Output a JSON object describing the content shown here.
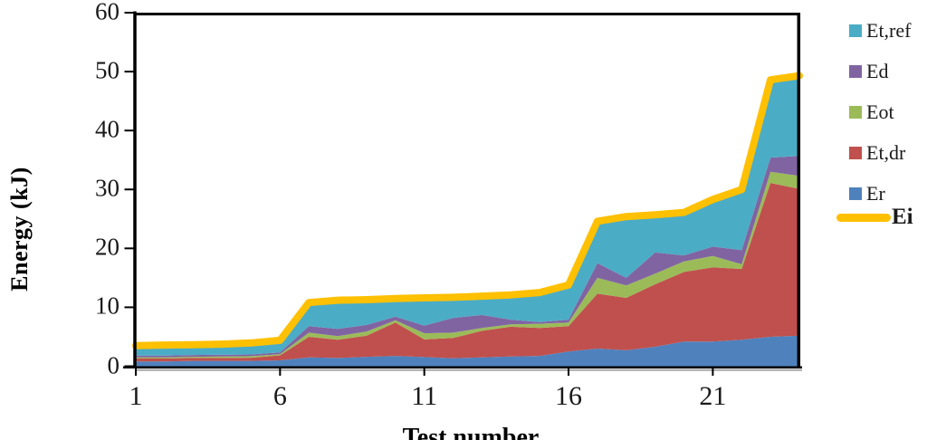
{
  "chart_data": {
    "type": "area",
    "stacked": true,
    "title": "",
    "xlabel": "Test number",
    "ylabel": "Energy (kJ)",
    "xlim": [
      1,
      24
    ],
    "ylim": [
      0,
      60
    ],
    "x_ticks": [
      1,
      6,
      11,
      16,
      21
    ],
    "y_ticks": [
      0,
      10,
      20,
      30,
      40,
      50,
      60
    ],
    "grid": false,
    "legend_position": "right",
    "x": [
      1,
      2,
      3,
      4,
      5,
      6,
      7,
      8,
      9,
      10,
      11,
      12,
      13,
      14,
      15,
      16,
      17,
      18,
      19,
      20,
      21,
      22,
      23,
      24
    ],
    "series": [
      {
        "name": "Er",
        "color": "#4F81BD",
        "values": [
          0.8,
          0.8,
          0.9,
          0.9,
          0.9,
          1.0,
          1.5,
          1.4,
          1.6,
          1.75,
          1.55,
          1.35,
          1.5,
          1.65,
          1.75,
          2.5,
          3.0,
          2.7,
          3.3,
          4.2,
          4.2,
          4.5,
          5.0,
          5.2
        ]
      },
      {
        "name": "Et,dr",
        "color": "#C0504D",
        "values": [
          0.5,
          0.5,
          0.5,
          0.5,
          0.55,
          0.85,
          3.5,
          3.1,
          3.6,
          5.65,
          3.0,
          3.45,
          4.5,
          5.05,
          4.75,
          4.3,
          9.3,
          8.9,
          10.6,
          11.8,
          12.6,
          12.0,
          26.1,
          24.9
        ]
      },
      {
        "name": "Eot",
        "color": "#9BBB59",
        "values": [
          0.2,
          0.2,
          0.2,
          0.25,
          0.25,
          0.2,
          0.7,
          0.6,
          0.7,
          0.4,
          1.05,
          0.9,
          0.5,
          0.4,
          0.7,
          0.6,
          2.7,
          2.1,
          1.8,
          1.8,
          1.9,
          0.8,
          1.9,
          2.2
        ]
      },
      {
        "name": "Ed",
        "color": "#8064A2",
        "values": [
          0.3,
          0.3,
          0.3,
          0.3,
          0.3,
          0.3,
          1.1,
          1.25,
          1.1,
          0.6,
          1.3,
          2.5,
          2.2,
          0.8,
          0.3,
          0.5,
          2.5,
          1.3,
          3.6,
          1.0,
          1.6,
          2.4,
          2.4,
          3.4
        ]
      },
      {
        "name": "Et,ref",
        "color": "#4BACC6",
        "values": [
          1.7,
          1.8,
          1.75,
          1.8,
          1.95,
          2.05,
          4.0,
          4.85,
          4.3,
          3.1,
          4.7,
          3.5,
          3.2,
          4.2,
          5.0,
          5.9,
          7.1,
          10.4,
          6.4,
          7.3,
          8.0,
          10.3,
          13.2,
          13.6
        ]
      }
    ],
    "line_series": {
      "name": "Ei",
      "color": "#FFC000",
      "values": [
        3.5,
        3.6,
        3.65,
        3.75,
        3.95,
        4.4,
        10.8,
        11.2,
        11.3,
        11.5,
        11.6,
        11.7,
        11.9,
        12.1,
        12.5,
        13.8,
        24.6,
        25.4,
        25.7,
        26.1,
        28.3,
        30.0,
        48.6,
        49.3
      ]
    }
  },
  "legend": {
    "items": [
      {
        "label": "Et,ref",
        "swatch": "square",
        "color": "#4BACC6"
      },
      {
        "label": "Ed",
        "swatch": "square",
        "color": "#8064A2"
      },
      {
        "label": "Eot",
        "swatch": "square",
        "color": "#9BBB59"
      },
      {
        "label": "Et,dr",
        "swatch": "square",
        "color": "#C0504D"
      },
      {
        "label": "Er",
        "swatch": "square",
        "color": "#4F81BD"
      },
      {
        "label": "Ei",
        "swatch": "line",
        "color": "#FFC000"
      }
    ]
  },
  "axis_colors": {
    "axis_line": "#000000",
    "baseline_shadow": "#a6a6a6",
    "tick_text": "#1a1a1a"
  }
}
